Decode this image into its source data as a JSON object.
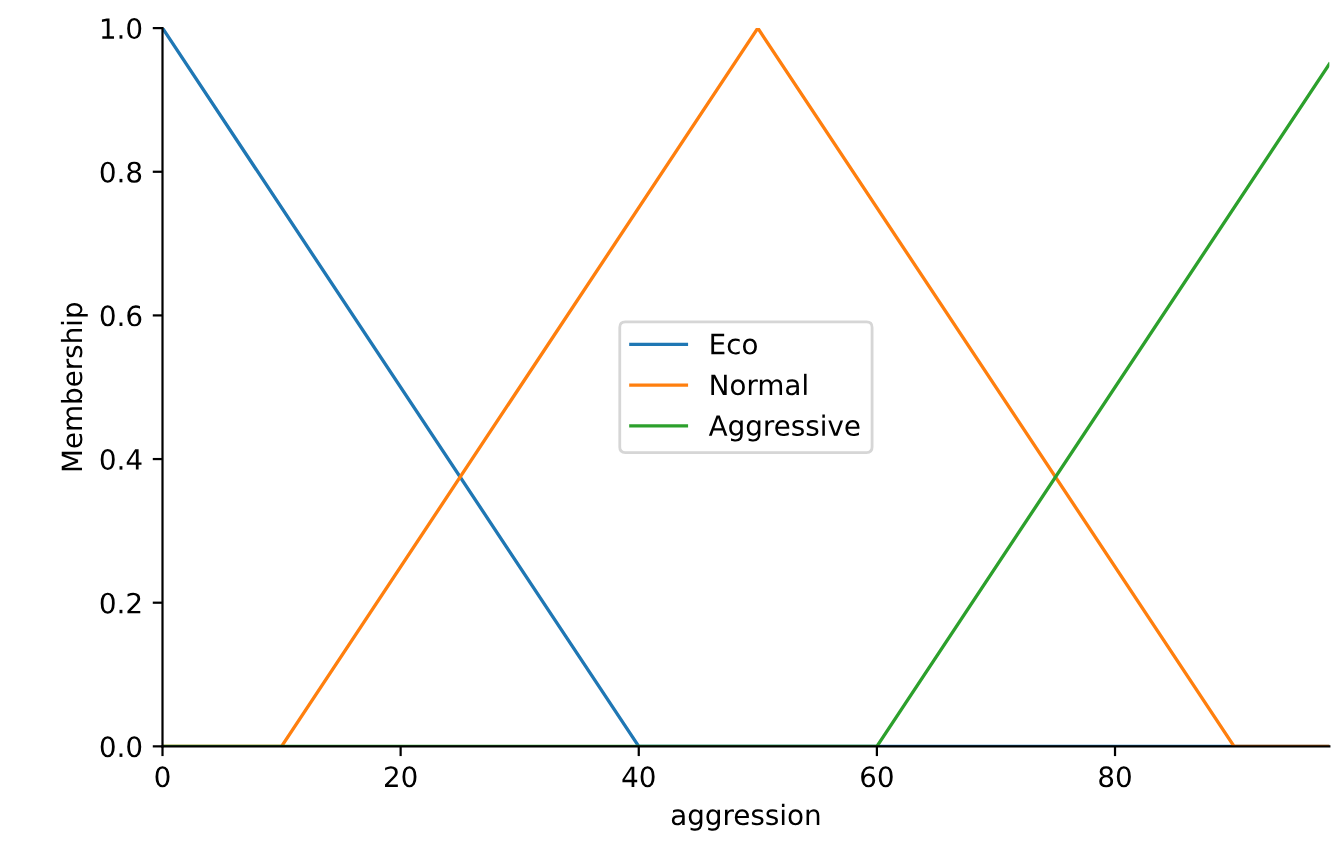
{
  "chart_data": {
    "type": "line",
    "xlabel": "aggression",
    "ylabel": "Membership",
    "xlim": [
      0,
      98
    ],
    "ylim": [
      0,
      1
    ],
    "xticks": [
      0,
      20,
      40,
      60,
      80
    ],
    "yticks": [
      {
        "value": 0,
        "label": "0.0"
      },
      {
        "value": 0.2,
        "label": "0.2"
      },
      {
        "value": 0.4,
        "label": "0.4"
      },
      {
        "value": 0.6,
        "label": "0.6"
      },
      {
        "value": 0.8,
        "label": "0.8"
      },
      {
        "value": 1,
        "label": "1.0"
      }
    ],
    "grid": false,
    "legend": "center",
    "marker": "none",
    "line_style": "solid",
    "series": [
      {
        "name": "Eco",
        "color": "#1f77b4",
        "x": [
          0,
          40,
          98
        ],
        "values": [
          1,
          0,
          0
        ]
      },
      {
        "name": "Normal",
        "color": "#ff7f0e",
        "x": [
          0,
          10,
          50,
          90,
          98
        ],
        "values": [
          0,
          0,
          1,
          0,
          0
        ]
      },
      {
        "name": "Aggressive",
        "color": "#2ca02c",
        "x": [
          0,
          60,
          98
        ],
        "values": [
          0,
          0,
          0.95
        ]
      }
    ]
  }
}
